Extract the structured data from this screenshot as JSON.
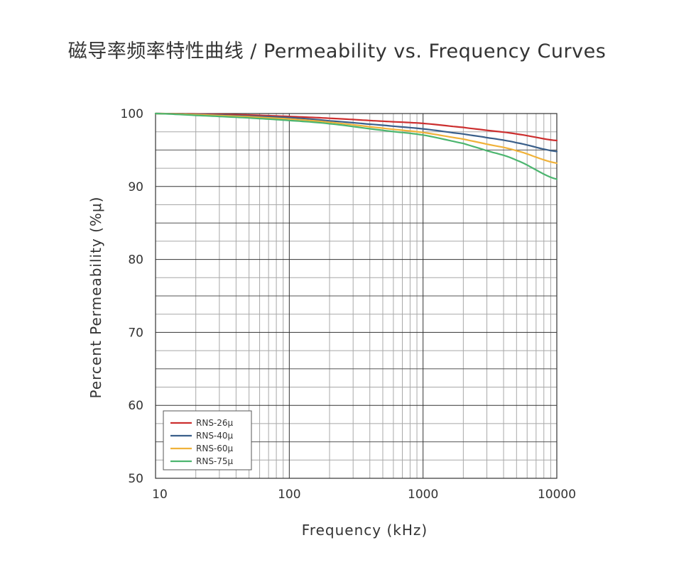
{
  "chart_data": {
    "type": "line",
    "title": "磁导率频率特性曲线 / Permeability vs. Frequency Curves",
    "xlabel": "Frequency (kHz)",
    "ylabel": "Percent Permeability (%μ)",
    "xscale": "log",
    "xlim": [
      10,
      10000
    ],
    "ylim": [
      50,
      100
    ],
    "x_ticks": [
      "10",
      "100",
      "1000",
      "10000"
    ],
    "y_ticks": [
      "50",
      "60",
      "70",
      "80",
      "90",
      "100"
    ],
    "grid": true,
    "legend_position": "bottom-left",
    "x": [
      10,
      20,
      50,
      100,
      200,
      500,
      1000,
      2000,
      3000,
      5000,
      10000
    ],
    "series": [
      {
        "name": "RNS-26μ",
        "color": "#cc2f2f",
        "values": [
          100.0,
          99.95,
          99.8,
          99.6,
          99.35,
          98.95,
          98.65,
          98.1,
          97.7,
          97.2,
          96.3
        ]
      },
      {
        "name": "RNS-40μ",
        "color": "#3a5f8a",
        "values": [
          100.0,
          99.9,
          99.65,
          99.45,
          99.0,
          98.4,
          97.9,
          97.2,
          96.7,
          96.0,
          94.8
        ]
      },
      {
        "name": "RNS-60μ",
        "color": "#f0b23a",
        "values": [
          100.0,
          99.85,
          99.55,
          99.25,
          98.8,
          98.0,
          97.4,
          96.5,
          95.8,
          94.9,
          93.2
        ]
      },
      {
        "name": "RNS-75μ",
        "color": "#4cb56f",
        "values": [
          100.0,
          99.75,
          99.4,
          99.05,
          98.6,
          97.7,
          97.05,
          95.9,
          94.9,
          93.6,
          91.0
        ]
      }
    ]
  },
  "colors": {
    "axis": "#333333",
    "major_grid": "#333333",
    "minor_grid": "#a8a8a8"
  }
}
